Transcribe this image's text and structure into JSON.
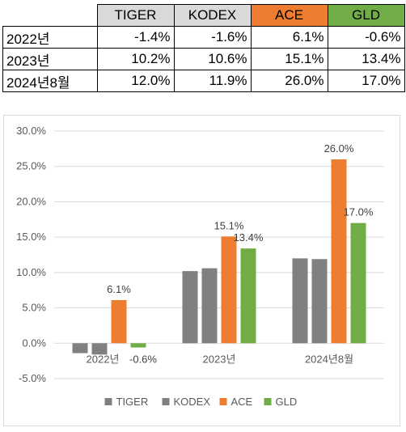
{
  "table": {
    "headers": [
      "TIGER",
      "KODEX",
      "ACE",
      "GLD"
    ],
    "header_colors": [
      "#d9d9d9",
      "#d9d9d9",
      "#ed7d31",
      "#70ad47"
    ],
    "rows": [
      {
        "label": "2022년",
        "values": [
          "-1.4%",
          "-1.6%",
          "6.1%",
          "-0.6%"
        ]
      },
      {
        "label": "2023년",
        "values": [
          "10.2%",
          "10.6%",
          "15.1%",
          "13.4%"
        ]
      },
      {
        "label": "2024년8월",
        "values": [
          "12.0%",
          "11.9%",
          "26.0%",
          "17.0%"
        ]
      }
    ]
  },
  "chart_data": {
    "type": "bar",
    "categories": [
      "2022년",
      "2023년",
      "2024년8월"
    ],
    "series": [
      {
        "name": "TIGER",
        "values": [
          -1.4,
          10.2,
          12.0
        ],
        "color": "#808080",
        "labeled": false
      },
      {
        "name": "KODEX",
        "values": [
          -1.6,
          10.6,
          11.9
        ],
        "color": "#808080",
        "labeled": false
      },
      {
        "name": "ACE",
        "values": [
          6.1,
          15.1,
          26.0
        ],
        "color": "#ed7d31",
        "labeled": true
      },
      {
        "name": "GLD",
        "values": [
          -0.6,
          13.4,
          17.0
        ],
        "color": "#70ad47",
        "labeled": true
      }
    ],
    "data_labels": {
      "ACE": [
        "6.1%",
        "15.1%",
        "26.0%"
      ],
      "GLD": [
        "-0.6%",
        "13.4%",
        "17.0%"
      ]
    },
    "ylim": [
      -5,
      30
    ],
    "yticks": [
      -5,
      0,
      5,
      10,
      15,
      20,
      25,
      30
    ],
    "ytick_labels": [
      "-5.0%",
      "0.0%",
      "5.0%",
      "10.0%",
      "15.0%",
      "20.0%",
      "25.0%",
      "30.0%"
    ],
    "grid": true,
    "legend": "bottom",
    "title": "",
    "xlabel": "",
    "ylabel": ""
  }
}
